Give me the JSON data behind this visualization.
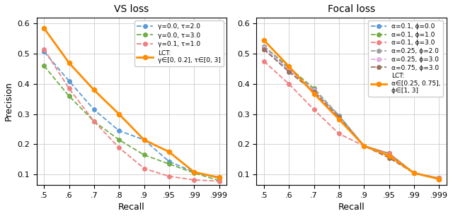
{
  "x_positions": [
    0,
    1,
    2,
    3,
    4,
    5,
    6,
    7
  ],
  "x_tick_labels": [
    ".5",
    ".6",
    ".7",
    ".8",
    ".9",
    ".95",
    ".99",
    ".999"
  ],
  "ylim": [
    0.065,
    0.62
  ],
  "xlim": [
    -0.3,
    7.3
  ],
  "vs_title": "VS loss",
  "vs_series": [
    {
      "label": "γ=0.0, τ=2.0",
      "color": "#5b9bd5",
      "linestyle": "--",
      "marker": "o",
      "y": [
        0.507,
        0.41,
        0.315,
        0.245,
        0.215,
        0.143,
        0.108,
        0.088
      ]
    },
    {
      "label": "γ=0.0, τ=3.0",
      "color": "#70ad47",
      "linestyle": "--",
      "marker": "o",
      "y": [
        0.46,
        0.36,
        0.276,
        0.215,
        0.165,
        0.135,
        0.105,
        0.08
      ]
    },
    {
      "label": "γ=0.1, τ=1.0",
      "color": "#f08080",
      "linestyle": "--",
      "marker": "o",
      "y": [
        0.515,
        0.385,
        0.276,
        0.189,
        0.12,
        0.094,
        0.082,
        0.078
      ]
    },
    {
      "label": "LCT:\nγ∈[0, 0.2], τ∈[0, 3]",
      "color": "#ff8c00",
      "linestyle": "-",
      "marker": "o",
      "y": [
        0.585,
        0.47,
        0.38,
        0.3,
        0.215,
        0.175,
        0.108,
        0.09
      ]
    }
  ],
  "focal_title": "Focal loss",
  "focal_series": [
    {
      "label": "α=0.1, ϕ=0.0",
      "color": "#5b9bd5",
      "linestyle": "--",
      "marker": "o",
      "y": [
        0.515,
        0.445,
        0.375,
        0.295,
        0.195,
        0.17,
        0.105,
        0.088
      ]
    },
    {
      "label": "α=0.1, ϕ=1.0",
      "color": "#70ad47",
      "linestyle": "--",
      "marker": "o",
      "y": [
        0.525,
        0.455,
        0.385,
        0.295,
        0.195,
        0.17,
        0.105,
        0.088
      ]
    },
    {
      "label": "α=0.1, ϕ=3.0",
      "color": "#f08080",
      "linestyle": "--",
      "marker": "o",
      "y": [
        0.475,
        0.4,
        0.315,
        0.235,
        0.195,
        0.17,
        0.105,
        0.088
      ]
    },
    {
      "label": "α=0.25, ϕ=2.0",
      "color": "#a0a0a0",
      "linestyle": "--",
      "marker": "o",
      "y": [
        0.525,
        0.45,
        0.382,
        0.295,
        0.195,
        0.162,
        0.105,
        0.085
      ]
    },
    {
      "label": "α=0.25, ϕ=3.0",
      "color": "#e0b0e0",
      "linestyle": "--",
      "marker": "o",
      "y": [
        0.52,
        0.445,
        0.378,
        0.29,
        0.195,
        0.162,
        0.105,
        0.085
      ]
    },
    {
      "label": "α=0.75, ϕ=3.0",
      "color": "#9b7060",
      "linestyle": "--",
      "marker": "o",
      "y": [
        0.515,
        0.44,
        0.374,
        0.29,
        0.195,
        0.155,
        0.105,
        0.085
      ]
    },
    {
      "label": "LCT:\nα∈[0.25, 0.75],\nϕ∈[1, 3]",
      "color": "#ff8c00",
      "linestyle": "-",
      "marker": "o",
      "y": [
        0.545,
        0.458,
        0.368,
        0.283,
        0.195,
        0.162,
        0.105,
        0.085
      ]
    }
  ],
  "ylabel": "Precision",
  "xlabel": "Recall",
  "yticks": [
    0.1,
    0.2,
    0.3,
    0.4,
    0.5,
    0.6
  ]
}
